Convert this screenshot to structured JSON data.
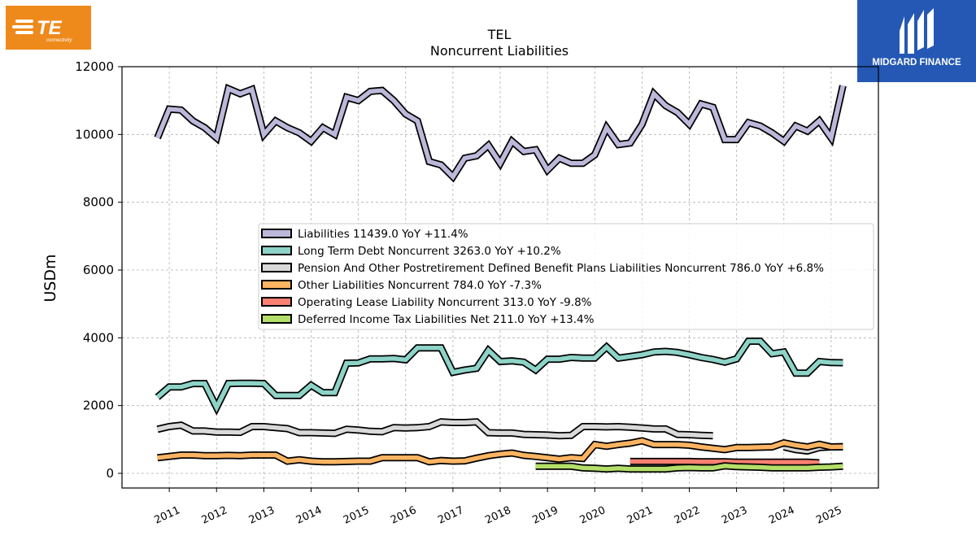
{
  "logos": {
    "left": {
      "text": "TE",
      "subtext": "connectivity"
    },
    "right": {
      "text": "MIDGARD FINANCE"
    }
  },
  "chart_data": {
    "type": "line",
    "title": "TEL",
    "subtitle": "Noncurrent  Liabilities",
    "ylabel": "USDm",
    "xlabel": "",
    "ylim": [
      -400,
      12000
    ],
    "xlim": [
      2010.0,
      2026.0
    ],
    "yticks": [
      0,
      2000,
      4000,
      6000,
      8000,
      10000,
      12000
    ],
    "xticks": [
      "2011",
      "2012",
      "2013",
      "2014",
      "2015",
      "2016",
      "2017",
      "2018",
      "2019",
      "2020",
      "2021",
      "2022",
      "2023",
      "2024",
      "2025"
    ],
    "grid": true,
    "legend_position": "center-right",
    "series": [
      {
        "name": "Liabilities",
        "legend": "Liabilities  11439.0 YoY +11.4%",
        "color": "#bcb8da",
        "x": [
          2010.75,
          2011.0,
          2011.25,
          2011.5,
          2011.75,
          2012.0,
          2012.25,
          2012.5,
          2012.75,
          2013.0,
          2013.25,
          2013.5,
          2013.75,
          2014.0,
          2014.25,
          2014.5,
          2014.75,
          2015.0,
          2015.25,
          2015.5,
          2015.75,
          2016.0,
          2016.25,
          2016.5,
          2016.75,
          2017.0,
          2017.25,
          2017.5,
          2017.75,
          2018.0,
          2018.25,
          2018.5,
          2018.75,
          2019.0,
          2019.25,
          2019.5,
          2019.75,
          2020.0,
          2020.25,
          2020.5,
          2020.75,
          2021.0,
          2021.25,
          2021.5,
          2021.75,
          2022.0,
          2022.25,
          2022.5,
          2022.75,
          2023.0,
          2023.25,
          2023.5,
          2023.75,
          2024.0,
          2024.25,
          2024.5,
          2024.75,
          2025.0,
          2025.25
        ],
        "values": [
          9900,
          10750,
          10720,
          10400,
          10200,
          9900,
          11350,
          11200,
          11330,
          10000,
          10400,
          10200,
          10050,
          9800,
          10200,
          10000,
          11100,
          11000,
          11270,
          11300,
          11000,
          10600,
          10400,
          9200,
          9100,
          8750,
          9300,
          9370,
          9680,
          9150,
          9800,
          9500,
          9550,
          8950,
          9300,
          9150,
          9150,
          9400,
          10200,
          9700,
          9750,
          10300,
          11200,
          10850,
          10650,
          10300,
          10900,
          10800,
          9850,
          9850,
          10350,
          10250,
          10050,
          9800,
          10250,
          10100,
          10400,
          9900,
          11439
        ]
      },
      {
        "name": "Long Term Debt Noncurrent",
        "legend": "Long Term Debt Noncurrent  3263.0 YoY +10.2%",
        "color": "#8dd3c7",
        "x": [
          2010.75,
          2011.0,
          2011.25,
          2011.5,
          2011.75,
          2012.0,
          2012.25,
          2012.5,
          2012.75,
          2013.0,
          2013.25,
          2013.5,
          2013.75,
          2014.0,
          2014.25,
          2014.5,
          2014.75,
          2015.0,
          2015.25,
          2015.5,
          2015.75,
          2016.0,
          2016.25,
          2016.5,
          2016.75,
          2017.0,
          2017.25,
          2017.5,
          2017.75,
          2018.0,
          2018.25,
          2018.5,
          2018.75,
          2019.0,
          2019.25,
          2019.5,
          2019.75,
          2020.0,
          2020.25,
          2020.5,
          2020.75,
          2021.0,
          2021.25,
          2021.5,
          2021.75,
          2022.0,
          2022.25,
          2022.5,
          2022.75,
          2023.0,
          2023.25,
          2023.5,
          2023.75,
          2024.0,
          2024.25,
          2024.5,
          2024.75,
          2025.0,
          2025.25
        ],
        "values": [
          2250,
          2550,
          2550,
          2650,
          2650,
          1950,
          2650,
          2660,
          2660,
          2650,
          2300,
          2300,
          2300,
          2600,
          2380,
          2380,
          3250,
          3260,
          3380,
          3380,
          3390,
          3350,
          3700,
          3700,
          3700,
          2980,
          3050,
          3100,
          3630,
          3300,
          3320,
          3280,
          3050,
          3370,
          3370,
          3420,
          3400,
          3400,
          3730,
          3400,
          3450,
          3500,
          3580,
          3600,
          3570,
          3500,
          3420,
          3360,
          3280,
          3380,
          3900,
          3900,
          3530,
          3580,
          2960,
          2960,
          3300,
          3270,
          3263
        ]
      },
      {
        "name": "Pension And Other Postretirement Defined Benefit Plans Liabilities Noncurrent",
        "legend": "Pension And Other Postretirement Defined Benefit Plans Liabilities Noncurrent  786.0 YoY +6.8%",
        "color": "#d9d9d9",
        "x": [
          2010.75,
          2011.0,
          2011.25,
          2011.5,
          2011.75,
          2012.0,
          2012.25,
          2012.5,
          2012.75,
          2013.0,
          2013.25,
          2013.5,
          2013.75,
          2014.0,
          2014.25,
          2014.5,
          2014.75,
          2015.0,
          2015.25,
          2015.5,
          2015.75,
          2016.0,
          2016.25,
          2016.5,
          2016.75,
          2017.0,
          2017.25,
          2017.5,
          2017.75,
          2018.0,
          2018.25,
          2018.5,
          2018.75,
          2019.0,
          2019.25,
          2019.5,
          2019.75,
          2020.0,
          2020.25,
          2020.5,
          2020.75,
          2021.0,
          2021.25,
          2021.5,
          2021.75,
          2022.0,
          2022.25,
          2022.5,
          2022.75,
          2023.0,
          2023.25,
          2023.5,
          2023.75,
          2024.0,
          2024.25,
          2024.5,
          2024.75,
          2025.0,
          2025.25
        ],
        "values": [
          1300,
          1380,
          1420,
          1250,
          1250,
          1220,
          1220,
          1210,
          1380,
          1380,
          1350,
          1320,
          1200,
          1200,
          1190,
          1180,
          1300,
          1280,
          1240,
          1230,
          1350,
          1340,
          1350,
          1380,
          1520,
          1500,
          1500,
          1520,
          1200,
          1190,
          1190,
          1150,
          1140,
          1130,
          1110,
          1120,
          1380,
          1380,
          1370,
          1380,
          1360,
          1340,
          1310,
          1310,
          1150,
          1140,
          1120,
          1110,
          null,
          null,
          null,
          null,
          null,
          780,
          700,
          660,
          760,
          780,
          786
        ]
      },
      {
        "name": "Other Liabilities Noncurrent",
        "legend": "Other Liabilities Noncurrent  784.0 YoY -7.3%",
        "color": "#fdb462",
        "x": [
          2010.75,
          2011.0,
          2011.25,
          2011.5,
          2011.75,
          2012.0,
          2012.25,
          2012.5,
          2012.75,
          2013.0,
          2013.25,
          2013.5,
          2013.75,
          2014.0,
          2014.25,
          2014.5,
          2014.75,
          2015.0,
          2015.25,
          2015.5,
          2015.75,
          2016.0,
          2016.25,
          2016.5,
          2016.75,
          2017.0,
          2017.25,
          2017.5,
          2017.75,
          2018.0,
          2018.25,
          2018.5,
          2018.75,
          2019.0,
          2019.25,
          2019.5,
          2019.75,
          2020.0,
          2020.25,
          2020.5,
          2020.75,
          2021.0,
          2021.25,
          2021.5,
          2021.75,
          2022.0,
          2022.25,
          2022.5,
          2022.75,
          2023.0,
          2023.25,
          2023.5,
          2023.75,
          2024.0,
          2024.25,
          2024.5,
          2024.75,
          2025.0,
          2025.25
        ],
        "values": [
          460,
          500,
          540,
          540,
          520,
          520,
          530,
          520,
          540,
          540,
          540,
          360,
          400,
          360,
          340,
          340,
          350,
          360,
          360,
          460,
          460,
          460,
          460,
          340,
          380,
          360,
          370,
          450,
          520,
          570,
          600,
          530,
          500,
          460,
          420,
          460,
          440,
          850,
          800,
          850,
          890,
          960,
          850,
          850,
          850,
          830,
          780,
          740,
          700,
          760,
          760,
          770,
          780,
          900,
          830,
          780,
          860,
          780,
          784
        ]
      },
      {
        "name": "Operating Lease Liability Noncurrent",
        "legend": "Operating Lease Liability Noncurrent  313.0 YoY -9.8%",
        "color": "#fb8072",
        "x": [
          2020.75,
          2021.0,
          2021.25,
          2021.5,
          2021.75,
          2022.0,
          2022.25,
          2022.5,
          2022.75,
          2023.0,
          2023.25,
          2023.5,
          2023.75,
          2024.0,
          2024.25,
          2024.5,
          2024.75
        ],
        "values": [
          350,
          350,
          350,
          350,
          350,
          350,
          340,
          340,
          340,
          330,
          330,
          330,
          330,
          330,
          330,
          330,
          313
        ]
      },
      {
        "name": "Deferred Income Tax Liabilities Net",
        "legend": "Deferred Income Tax Liabilities Net  211.0 YoY +13.4%",
        "color": "#b3de69",
        "x": [
          2018.75,
          2019.0,
          2019.25,
          2019.5,
          2019.75,
          2020.0,
          2020.25,
          2020.5,
          2020.75,
          2021.0,
          2021.25,
          2021.5,
          2021.75,
          2022.0,
          2022.25,
          2022.5,
          2022.75,
          2023.0,
          2023.25,
          2023.5,
          2023.75,
          2024.0,
          2024.25,
          2024.5,
          2024.75,
          2025.0,
          2025.25
        ],
        "values": [
          210,
          210,
          210,
          210,
          160,
          150,
          130,
          150,
          130,
          130,
          130,
          130,
          160,
          170,
          160,
          160,
          220,
          200,
          190,
          180,
          160,
          160,
          160,
          160,
          180,
          190,
          211
        ]
      }
    ]
  }
}
